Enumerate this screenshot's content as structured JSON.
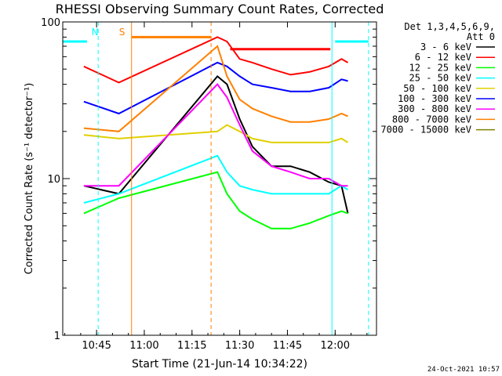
{
  "chart_data": {
    "type": "line",
    "title": "RHESSI Observing Summary Count Rates, Corrected",
    "xlabel": "Start Time (21-Jun-14 10:34:22)",
    "ylabel": "Corrected Count Rate (s⁻¹ detector⁻¹)",
    "yscale": "log",
    "ylim": [
      1,
      100
    ],
    "xlim": [
      "10:34:22",
      "12:13:00"
    ],
    "x_ticks": [
      "10:45",
      "11:00",
      "11:15",
      "11:30",
      "11:45",
      "12:00"
    ],
    "y_ticks": [
      "1",
      "10",
      "100"
    ],
    "grid": false,
    "legend_position": "right",
    "legend_header": [
      "Det 1,3,4,5,6,9,",
      "Att 0"
    ],
    "timestamp": "24-Oct-2021 10:57",
    "annotations": [
      {
        "text": "N",
        "color": "#00ffff",
        "time": "10:44:30"
      },
      {
        "text": "S",
        "color": "#ff8000",
        "time": "10:53:00"
      }
    ],
    "night_intervals": [
      [
        "10:34:22",
        "10:43:30"
      ],
      [
        "11:59:00",
        "12:13:00"
      ]
    ],
    "night_markers": [
      "10:45:30",
      "11:59:00",
      "12:10:30"
    ],
    "saa_interval": [
      "10:56:00",
      "11:21:00"
    ],
    "saa_markers": [
      "10:56:00",
      "11:21:00"
    ],
    "series": [
      {
        "name": "3 - 6 keV",
        "color": "#000000",
        "points": [
          [
            "10:41",
            9.0
          ],
          [
            "10:52",
            8.0
          ],
          [
            "11:23",
            45
          ],
          [
            "11:26",
            40
          ],
          [
            "11:30",
            24
          ],
          [
            "11:34",
            16
          ],
          [
            "11:40",
            12
          ],
          [
            "11:46",
            12
          ],
          [
            "11:52",
            11
          ],
          [
            "11:58",
            9.5
          ],
          [
            "12:02",
            9.0
          ],
          [
            "12:04",
            6.0
          ]
        ]
      },
      {
        "name": "6 - 12 keV",
        "color": "#ff0000",
        "points": [
          [
            "10:41",
            52
          ],
          [
            "10:52",
            41
          ],
          [
            "11:23",
            80
          ],
          [
            "11:26",
            75
          ],
          [
            "11:30",
            58
          ],
          [
            "11:34",
            55
          ],
          [
            "11:40",
            50
          ],
          [
            "11:46",
            46
          ],
          [
            "11:52",
            48
          ],
          [
            "11:58",
            52
          ],
          [
            "12:02",
            58
          ],
          [
            "12:04",
            55
          ]
        ]
      },
      {
        "name": "12 - 25 keV",
        "color": "#00ff00",
        "points": [
          [
            "10:41",
            6.0
          ],
          [
            "10:52",
            7.5
          ],
          [
            "11:23",
            11
          ],
          [
            "11:26",
            8.0
          ],
          [
            "11:30",
            6.2
          ],
          [
            "11:34",
            5.5
          ],
          [
            "11:40",
            4.8
          ],
          [
            "11:46",
            4.8
          ],
          [
            "11:52",
            5.2
          ],
          [
            "11:58",
            5.8
          ],
          [
            "12:02",
            6.2
          ],
          [
            "12:04",
            6.0
          ]
        ]
      },
      {
        "name": "25 - 50 keV",
        "color": "#00ffff",
        "points": [
          [
            "10:41",
            7.0
          ],
          [
            "10:52",
            8.0
          ],
          [
            "11:23",
            14
          ],
          [
            "11:26",
            11
          ],
          [
            "11:30",
            9.0
          ],
          [
            "11:34",
            8.5
          ],
          [
            "11:40",
            8.0
          ],
          [
            "11:46",
            8.0
          ],
          [
            "11:52",
            8.0
          ],
          [
            "11:58",
            8.0
          ],
          [
            "12:02",
            9.0
          ],
          [
            "12:04",
            8.5
          ]
        ]
      },
      {
        "name": "50 - 100 keV",
        "color": "#e0d000",
        "points": [
          [
            "10:41",
            19
          ],
          [
            "10:52",
            18
          ],
          [
            "11:23",
            20
          ],
          [
            "11:26",
            22
          ],
          [
            "11:30",
            20
          ],
          [
            "11:34",
            18
          ],
          [
            "11:40",
            17
          ],
          [
            "11:46",
            17
          ],
          [
            "11:52",
            17
          ],
          [
            "11:58",
            17
          ],
          [
            "12:02",
            18
          ],
          [
            "12:04",
            17
          ]
        ]
      },
      {
        "name": "100 - 300 keV",
        "color": "#0000ff",
        "points": [
          [
            "10:41",
            31
          ],
          [
            "10:52",
            26
          ],
          [
            "11:23",
            55
          ],
          [
            "11:26",
            52
          ],
          [
            "11:30",
            45
          ],
          [
            "11:34",
            40
          ],
          [
            "11:40",
            38
          ],
          [
            "11:46",
            36
          ],
          [
            "11:52",
            36
          ],
          [
            "11:58",
            38
          ],
          [
            "12:02",
            43
          ],
          [
            "12:04",
            42
          ]
        ]
      },
      {
        "name": "300 - 800 keV",
        "color": "#ff00ff",
        "points": [
          [
            "10:41",
            9.0
          ],
          [
            "10:52",
            9.0
          ],
          [
            "11:23",
            40
          ],
          [
            "11:26",
            33
          ],
          [
            "11:30",
            22
          ],
          [
            "11:34",
            15
          ],
          [
            "11:40",
            12
          ],
          [
            "11:46",
            11
          ],
          [
            "11:52",
            10
          ],
          [
            "11:58",
            10
          ],
          [
            "12:02",
            9.0
          ],
          [
            "12:04",
            9.0
          ]
        ]
      },
      {
        "name": "800 - 7000 keV",
        "color": "#ff8000",
        "points": [
          [
            "10:41",
            21
          ],
          [
            "10:52",
            20
          ],
          [
            "11:23",
            70
          ],
          [
            "11:26",
            45
          ],
          [
            "11:30",
            32
          ],
          [
            "11:34",
            28
          ],
          [
            "11:40",
            25
          ],
          [
            "11:46",
            23
          ],
          [
            "11:52",
            23
          ],
          [
            "11:58",
            24
          ],
          [
            "12:02",
            26
          ],
          [
            "12:04",
            25
          ]
        ]
      },
      {
        "name": "7000 - 15000 keV",
        "color": "#808000",
        "points": []
      }
    ],
    "overlay_lines": [
      {
        "color": "#00ffff",
        "value": 75,
        "segments": [
          [
            "10:34:22",
            "10:42:00"
          ],
          [
            "12:00:00",
            "12:10:30"
          ]
        ]
      },
      {
        "color": "#ff8000",
        "value": 80,
        "segments": [
          [
            "10:56:00",
            "11:21:00"
          ]
        ]
      },
      {
        "color": "#ff0000",
        "value": 67,
        "segments": [
          [
            "11:27:00",
            "11:58:30"
          ]
        ]
      }
    ]
  }
}
